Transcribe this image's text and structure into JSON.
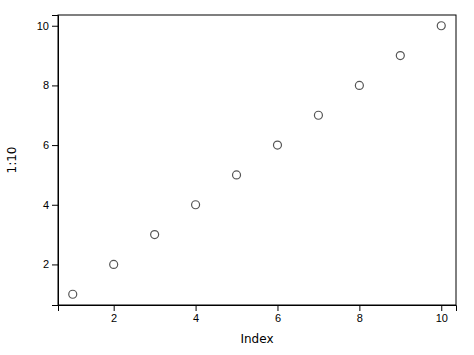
{
  "chart_data": {
    "type": "scatter",
    "x": [
      1,
      2,
      3,
      4,
      5,
      6,
      7,
      8,
      9,
      10
    ],
    "values": [
      1,
      2,
      3,
      4,
      5,
      6,
      7,
      8,
      9,
      10
    ],
    "xlabel": "Index",
    "ylabel": "1:10",
    "xlim": [
      0.64,
      10.36
    ],
    "ylim": [
      0.64,
      10.36
    ],
    "xticks": [
      2,
      4,
      6,
      8,
      10
    ],
    "yticks": [
      2,
      4,
      6,
      8,
      10
    ],
    "color": "#555555",
    "marker": "circle",
    "grid": false
  }
}
